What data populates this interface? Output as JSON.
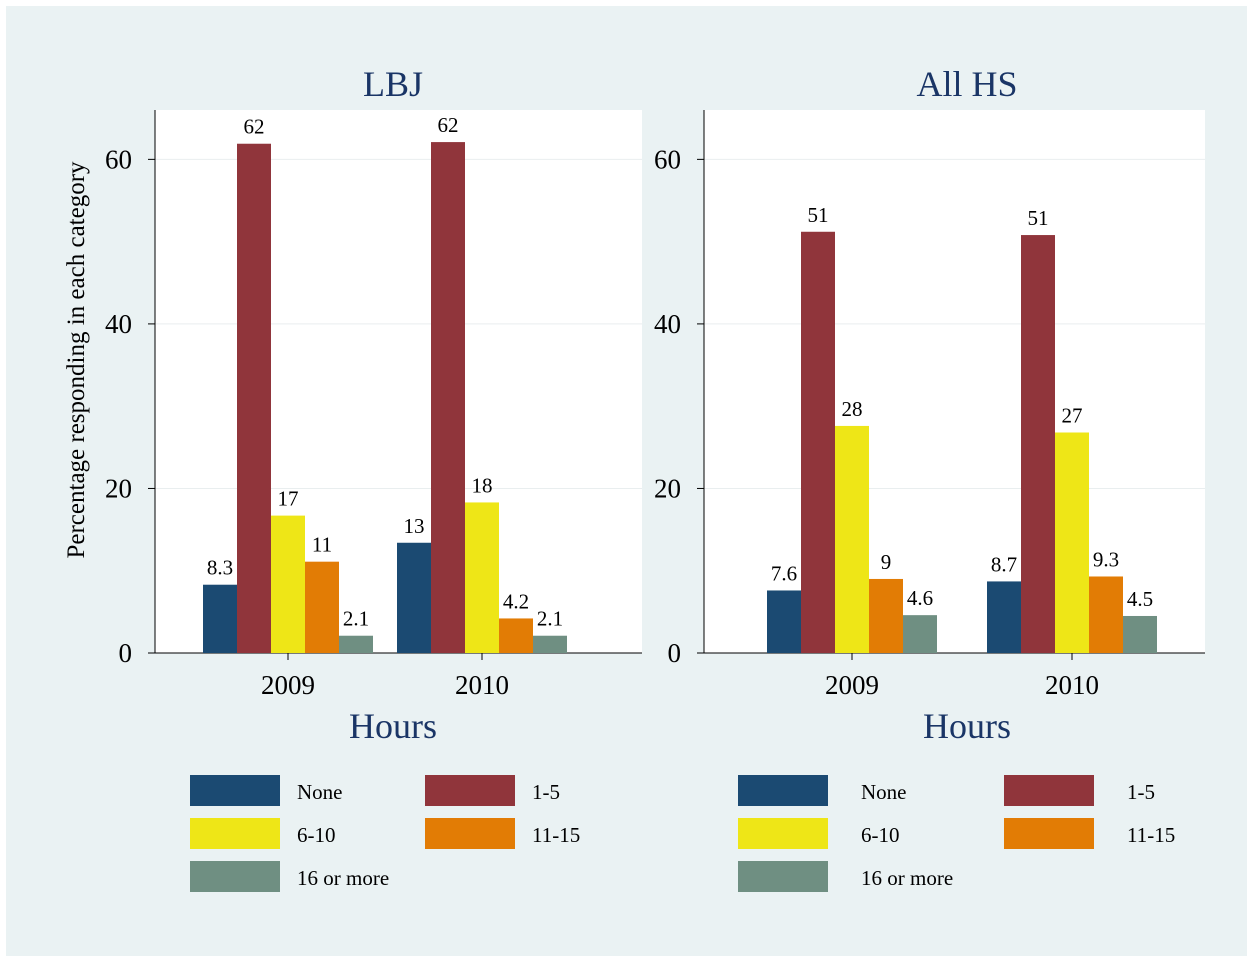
{
  "y_axis_label": "Percentage responding in each category",
  "colors": {
    "outer_background": "#eaf2f3",
    "plot_background": "#ffffff",
    "title_color": "#1a3566"
  },
  "legend": [
    {
      "label": "None",
      "color": "#1b4a72"
    },
    {
      "label": "1-5",
      "color": "#90353b"
    },
    {
      "label": "6-10",
      "color": "#eee617"
    },
    {
      "label": "11-15",
      "color": "#e27c05"
    },
    {
      "label": "16 or more",
      "color": "#6f8f82"
    }
  ],
  "chart_data": [
    {
      "type": "bar",
      "title": "LBJ",
      "xlabel": "Hours",
      "ylabel": "Percentage responding in each category",
      "categories": [
        "2009",
        "2010"
      ],
      "yticks": [
        "0",
        "20",
        "40",
        "60"
      ],
      "ylim": [
        0,
        66
      ],
      "grid": true,
      "legend_position": "bottom",
      "series": [
        {
          "name": "None",
          "values": [
            8.3,
            13.4
          ],
          "labels": [
            "8.3",
            "13"
          ]
        },
        {
          "name": "1-5",
          "values": [
            61.9,
            62.1
          ],
          "labels": [
            "62",
            "62"
          ]
        },
        {
          "name": "6-10",
          "values": [
            16.7,
            18.3
          ],
          "labels": [
            "17",
            "18"
          ]
        },
        {
          "name": "11-15",
          "values": [
            11.1,
            4.2
          ],
          "labels": [
            "11",
            "4.2"
          ]
        },
        {
          "name": "16 or more",
          "values": [
            2.1,
            2.1
          ],
          "labels": [
            "2.1",
            "2.1"
          ]
        }
      ]
    },
    {
      "type": "bar",
      "title": "All HS",
      "xlabel": "Hours",
      "ylabel": "",
      "categories": [
        "2009",
        "2010"
      ],
      "yticks": [
        "0",
        "20",
        "40",
        "60"
      ],
      "ylim": [
        0,
        66
      ],
      "grid": true,
      "legend_position": "bottom",
      "series": [
        {
          "name": "None",
          "values": [
            7.6,
            8.7
          ],
          "labels": [
            "7.6",
            "8.7"
          ]
        },
        {
          "name": "1-5",
          "values": [
            51.2,
            50.8
          ],
          "labels": [
            "51",
            "51"
          ]
        },
        {
          "name": "6-10",
          "values": [
            27.6,
            26.8
          ],
          "labels": [
            "28",
            "27"
          ]
        },
        {
          "name": "11-15",
          "values": [
            9.0,
            9.3
          ],
          "labels": [
            "9",
            "9.3"
          ]
        },
        {
          "name": "16 or more",
          "values": [
            4.6,
            4.5
          ],
          "labels": [
            "4.6",
            "4.5"
          ]
        }
      ]
    }
  ]
}
